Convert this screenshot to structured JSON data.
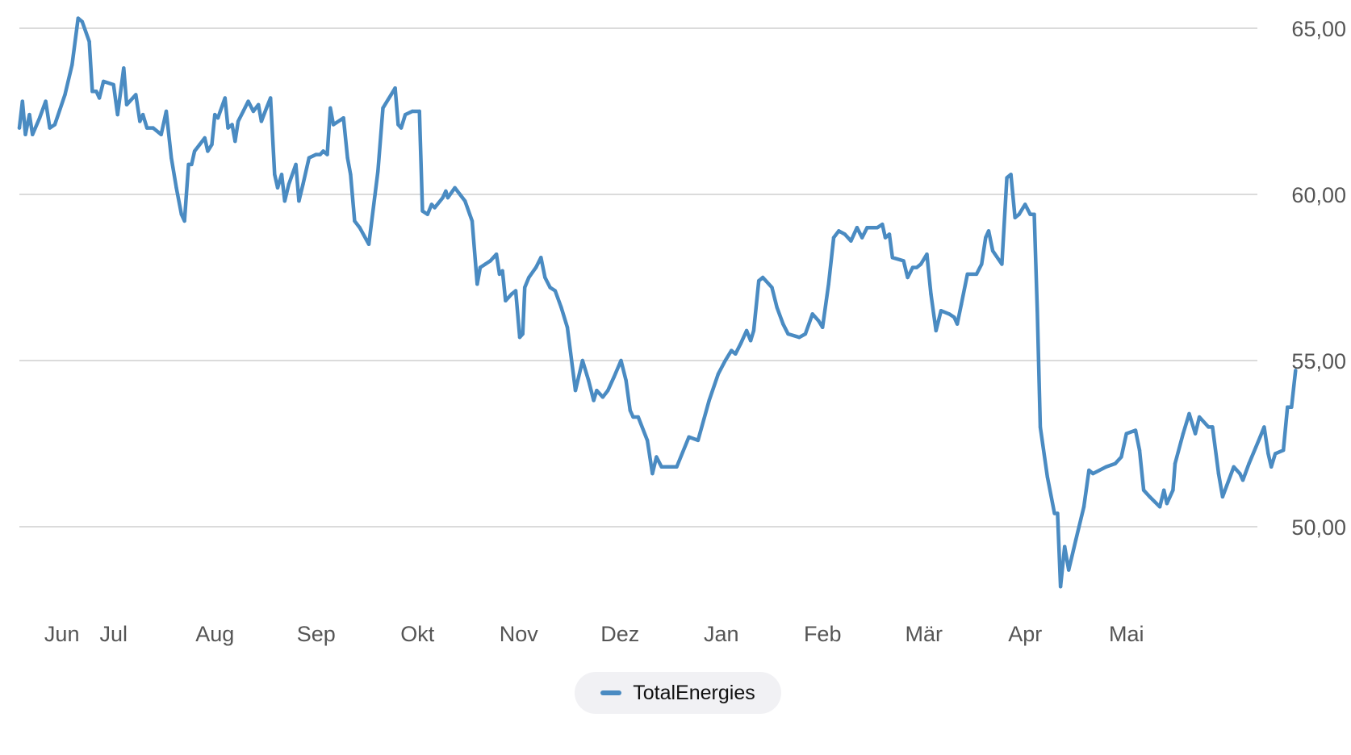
{
  "chart_data": {
    "type": "line",
    "ylim": [
      48,
      65.5
    ],
    "y_ticks": [
      {
        "value": 50,
        "label": "50,00"
      },
      {
        "value": 55,
        "label": "55,00"
      },
      {
        "value": 60,
        "label": "60,00"
      },
      {
        "value": 65,
        "label": "65,00"
      }
    ],
    "y_axis_position": "right",
    "grid": true,
    "legend_position": "bottom-center",
    "x_ticks": [
      {
        "t": 4.2,
        "label": "Jun"
      },
      {
        "t": 9.3,
        "label": "Jul"
      },
      {
        "t": 19.3,
        "label": "Aug"
      },
      {
        "t": 29.3,
        "label": "Sep"
      },
      {
        "t": 39.3,
        "label": "Okt"
      },
      {
        "t": 49.3,
        "label": "Nov"
      },
      {
        "t": 59.3,
        "label": "Dez"
      },
      {
        "t": 69.3,
        "label": "Jan"
      },
      {
        "t": 79.3,
        "label": "Feb"
      },
      {
        "t": 89.3,
        "label": "Mär"
      },
      {
        "t": 99.3,
        "label": "Apr"
      },
      {
        "t": 109.3,
        "label": "Mai"
      }
    ],
    "x_range": [
      0,
      120.5
    ],
    "series": [
      {
        "name": "TotalEnergies",
        "color": "#4a8bc2",
        "points": [
          [
            0.0,
            62.0
          ],
          [
            0.3,
            62.8
          ],
          [
            0.6,
            61.8
          ],
          [
            1.0,
            62.4
          ],
          [
            1.3,
            61.8
          ],
          [
            2.0,
            62.3
          ],
          [
            2.6,
            62.8
          ],
          [
            3.0,
            62.0
          ],
          [
            3.5,
            62.1
          ],
          [
            4.5,
            63.0
          ],
          [
            5.2,
            63.9
          ],
          [
            5.8,
            65.3
          ],
          [
            6.2,
            65.2
          ],
          [
            6.9,
            64.6
          ],
          [
            7.2,
            63.1
          ],
          [
            7.6,
            63.1
          ],
          [
            7.9,
            62.9
          ],
          [
            8.3,
            63.4
          ],
          [
            9.3,
            63.3
          ],
          [
            9.7,
            62.4
          ],
          [
            10.3,
            63.8
          ],
          [
            10.6,
            62.7
          ],
          [
            11.5,
            63.0
          ],
          [
            11.9,
            62.2
          ],
          [
            12.2,
            62.4
          ],
          [
            12.6,
            62.0
          ],
          [
            13.2,
            62.0
          ],
          [
            14.0,
            61.8
          ],
          [
            14.5,
            62.5
          ],
          [
            15.0,
            61.1
          ],
          [
            15.5,
            60.2
          ],
          [
            16.0,
            59.4
          ],
          [
            16.3,
            59.2
          ],
          [
            16.7,
            60.9
          ],
          [
            17.0,
            60.9
          ],
          [
            17.3,
            61.3
          ],
          [
            17.8,
            61.5
          ],
          [
            18.3,
            61.7
          ],
          [
            18.6,
            61.3
          ],
          [
            19.0,
            61.5
          ],
          [
            19.3,
            62.4
          ],
          [
            19.6,
            62.3
          ],
          [
            20.3,
            62.9
          ],
          [
            20.6,
            62.0
          ],
          [
            21.0,
            62.1
          ],
          [
            21.3,
            61.6
          ],
          [
            21.6,
            62.2
          ],
          [
            22.1,
            62.5
          ],
          [
            22.6,
            62.8
          ],
          [
            23.1,
            62.5
          ],
          [
            23.6,
            62.7
          ],
          [
            23.9,
            62.2
          ],
          [
            24.4,
            62.6
          ],
          [
            24.8,
            62.9
          ],
          [
            25.2,
            60.6
          ],
          [
            25.5,
            60.2
          ],
          [
            25.9,
            60.6
          ],
          [
            26.2,
            59.8
          ],
          [
            26.6,
            60.3
          ],
          [
            27.3,
            60.9
          ],
          [
            27.6,
            59.8
          ],
          [
            28.0,
            60.3
          ],
          [
            28.6,
            61.1
          ],
          [
            29.3,
            61.2
          ],
          [
            29.7,
            61.2
          ],
          [
            30.0,
            61.3
          ],
          [
            30.4,
            61.2
          ],
          [
            30.7,
            62.6
          ],
          [
            31.0,
            62.1
          ],
          [
            32.0,
            62.3
          ],
          [
            32.4,
            61.1
          ],
          [
            32.7,
            60.6
          ],
          [
            33.1,
            59.2
          ],
          [
            33.6,
            59.0
          ],
          [
            34.5,
            58.5
          ],
          [
            35.4,
            60.7
          ],
          [
            35.9,
            62.6
          ],
          [
            36.7,
            63.0
          ],
          [
            37.1,
            63.2
          ],
          [
            37.4,
            62.1
          ],
          [
            37.7,
            62.0
          ],
          [
            38.1,
            62.4
          ],
          [
            38.8,
            62.5
          ],
          [
            39.5,
            62.5
          ],
          [
            39.8,
            59.5
          ],
          [
            40.3,
            59.4
          ],
          [
            40.7,
            59.7
          ],
          [
            41.0,
            59.6
          ],
          [
            41.8,
            59.9
          ],
          [
            42.1,
            60.1
          ],
          [
            42.3,
            59.9
          ],
          [
            43.0,
            60.2
          ],
          [
            43.5,
            60.0
          ],
          [
            44.0,
            59.8
          ],
          [
            44.7,
            59.2
          ],
          [
            45.2,
            57.3
          ],
          [
            45.5,
            57.8
          ],
          [
            46.0,
            57.9
          ],
          [
            46.5,
            58.0
          ],
          [
            47.1,
            58.2
          ],
          [
            47.4,
            57.6
          ],
          [
            47.7,
            57.7
          ],
          [
            48.0,
            56.8
          ],
          [
            48.6,
            57.0
          ],
          [
            49.0,
            57.1
          ],
          [
            49.4,
            55.7
          ],
          [
            49.7,
            55.8
          ],
          [
            49.9,
            57.2
          ],
          [
            50.3,
            57.5
          ],
          [
            51.0,
            57.8
          ],
          [
            51.5,
            58.1
          ],
          [
            51.9,
            57.5
          ],
          [
            52.4,
            57.2
          ],
          [
            52.9,
            57.1
          ],
          [
            53.5,
            56.6
          ],
          [
            54.1,
            56.0
          ],
          [
            54.9,
            54.1
          ],
          [
            55.6,
            55.0
          ],
          [
            56.2,
            54.4
          ],
          [
            56.7,
            53.8
          ],
          [
            57.0,
            54.1
          ],
          [
            57.6,
            53.9
          ],
          [
            58.1,
            54.1
          ],
          [
            58.7,
            54.5
          ],
          [
            59.4,
            55.0
          ],
          [
            59.9,
            54.4
          ],
          [
            60.3,
            53.5
          ],
          [
            60.6,
            53.3
          ],
          [
            61.1,
            53.3
          ],
          [
            62.0,
            52.6
          ],
          [
            62.5,
            51.6
          ],
          [
            62.9,
            52.1
          ],
          [
            63.4,
            51.8
          ],
          [
            64.3,
            51.8
          ],
          [
            64.9,
            51.8
          ],
          [
            66.1,
            52.7
          ],
          [
            67.0,
            52.6
          ],
          [
            68.1,
            53.8
          ],
          [
            69.0,
            54.6
          ],
          [
            69.7,
            55.0
          ],
          [
            70.3,
            55.3
          ],
          [
            70.7,
            55.2
          ],
          [
            71.2,
            55.5
          ],
          [
            71.8,
            55.9
          ],
          [
            72.2,
            55.6
          ],
          [
            72.5,
            55.9
          ],
          [
            73.0,
            57.4
          ],
          [
            73.4,
            57.5
          ],
          [
            74.3,
            57.2
          ],
          [
            74.8,
            56.6
          ],
          [
            75.4,
            56.1
          ],
          [
            75.9,
            55.8
          ],
          [
            77.0,
            55.7
          ],
          [
            77.6,
            55.8
          ],
          [
            78.3,
            56.4
          ],
          [
            78.9,
            56.2
          ],
          [
            79.3,
            56.0
          ],
          [
            79.9,
            57.3
          ],
          [
            80.4,
            58.7
          ],
          [
            80.9,
            58.9
          ],
          [
            81.5,
            58.8
          ],
          [
            82.1,
            58.6
          ],
          [
            82.7,
            59.0
          ],
          [
            83.2,
            58.7
          ],
          [
            83.7,
            59.0
          ],
          [
            84.2,
            59.0
          ],
          [
            84.7,
            59.0
          ],
          [
            85.2,
            59.1
          ],
          [
            85.5,
            58.7
          ],
          [
            85.9,
            58.8
          ],
          [
            86.2,
            58.1
          ],
          [
            87.3,
            58.0
          ],
          [
            87.7,
            57.5
          ],
          [
            88.2,
            57.8
          ],
          [
            88.6,
            57.8
          ],
          [
            89.0,
            57.9
          ],
          [
            89.6,
            58.2
          ],
          [
            90.0,
            57.0
          ],
          [
            90.5,
            55.9
          ],
          [
            91.0,
            56.5
          ],
          [
            91.8,
            56.4
          ],
          [
            92.3,
            56.3
          ],
          [
            92.6,
            56.1
          ],
          [
            93.0,
            56.7
          ],
          [
            93.6,
            57.6
          ],
          [
            94.5,
            57.6
          ],
          [
            95.0,
            57.9
          ],
          [
            95.4,
            58.7
          ],
          [
            95.7,
            58.9
          ],
          [
            96.1,
            58.3
          ],
          [
            97.0,
            57.9
          ],
          [
            97.5,
            60.5
          ],
          [
            97.9,
            60.6
          ],
          [
            98.3,
            59.3
          ],
          [
            98.7,
            59.4
          ],
          [
            99.3,
            59.7
          ],
          [
            99.8,
            59.4
          ],
          [
            100.2,
            59.4
          ],
          [
            100.5,
            56.5
          ],
          [
            100.8,
            53.0
          ],
          [
            101.5,
            51.5
          ],
          [
            102.2,
            50.4
          ],
          [
            102.5,
            50.4
          ],
          [
            102.8,
            48.2
          ],
          [
            103.2,
            49.4
          ],
          [
            103.6,
            48.7
          ],
          [
            104.3,
            49.6
          ],
          [
            105.1,
            50.6
          ],
          [
            105.6,
            51.7
          ],
          [
            106.0,
            51.6
          ],
          [
            107.3,
            51.8
          ],
          [
            108.2,
            51.9
          ],
          [
            108.8,
            52.1
          ],
          [
            109.3,
            52.8
          ],
          [
            110.2,
            52.9
          ],
          [
            110.6,
            52.3
          ],
          [
            111.0,
            51.1
          ],
          [
            111.6,
            50.9
          ],
          [
            112.6,
            50.6
          ],
          [
            113.0,
            51.1
          ],
          [
            113.3,
            50.7
          ],
          [
            113.9,
            51.1
          ],
          [
            114.1,
            51.9
          ],
          [
            114.9,
            52.8
          ],
          [
            115.5,
            53.4
          ],
          [
            116.1,
            52.8
          ],
          [
            116.5,
            53.3
          ],
          [
            117.4,
            53.0
          ],
          [
            117.8,
            53.0
          ],
          [
            118.4,
            51.6
          ],
          [
            118.8,
            50.9
          ],
          [
            119.9,
            51.8
          ],
          [
            120.5,
            51.6
          ],
          [
            120.8,
            51.4
          ],
          [
            121.4,
            51.9
          ],
          [
            122.5,
            52.7
          ],
          [
            122.9,
            53.0
          ],
          [
            123.3,
            52.2
          ],
          [
            123.6,
            51.8
          ],
          [
            124.0,
            52.2
          ],
          [
            124.8,
            52.3
          ],
          [
            125.2,
            53.6
          ],
          [
            125.6,
            53.6
          ],
          [
            126.0,
            54.7
          ]
        ]
      }
    ]
  },
  "legend": {
    "items": [
      {
        "label": "TotalEnergies",
        "color": "#4a8bc2"
      }
    ]
  }
}
